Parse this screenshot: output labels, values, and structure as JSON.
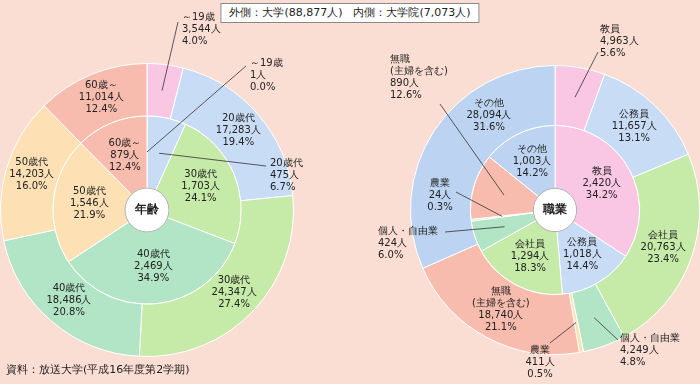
{
  "header": "外側：大学(88,877人)　内側：大学院(7,073人)",
  "source": "資料：放送大学(平成16年度第2学期)",
  "chart_data": [
    {
      "type": "doughnut",
      "title": "年齢",
      "data_labels": true,
      "categories": [
        "～19歳",
        "20歳代",
        "30歳代",
        "40歳代",
        "50歳代",
        "60歳～"
      ],
      "colors": [
        "#f9c6e4",
        "#c9dcf6",
        "#c6eaa8",
        "#b2e4c6",
        "#fde0b4",
        "#f7bcae"
      ],
      "series": [
        {
          "values": [
            3544,
            17283,
            24347,
            18486,
            14203,
            11014
          ],
          "value_labels": [
            "3,544人",
            "17,283人",
            "24,347人",
            "18,486人",
            "14,203人",
            "11,014人"
          ],
          "percents": [
            4.0,
            19.4,
            27.4,
            20.8,
            16.0,
            12.4
          ],
          "percent_labels": [
            "4.0%",
            "19.4%",
            "27.4%",
            "20.8%",
            "16.0%",
            "12.4%"
          ]
        },
        {
          "values": [
            1,
            475,
            1703,
            2469,
            1546,
            879
          ],
          "value_labels": [
            "1人",
            "475人",
            "1,703人",
            "2,469人",
            "1,546人",
            "879人"
          ],
          "percents": [
            0.0,
            6.7,
            24.1,
            34.9,
            21.9,
            12.4
          ],
          "percent_labels": [
            "0.0%",
            "6.7%",
            "24.1%",
            "34.9%",
            "21.9%",
            "12.4%"
          ]
        }
      ]
    },
    {
      "type": "doughnut",
      "title": "職業",
      "data_labels": true,
      "categories": [
        "教員",
        "公務員",
        "会社員",
        "個人・自由業",
        "農業",
        "無職(主婦を含む)",
        "その他"
      ],
      "colors": [
        "#f9c6e4",
        "#c9dcf6",
        "#c6eaa8",
        "#b2e4c6",
        "#fde0b4",
        "#f7bcae",
        "#bcd4f2"
      ],
      "series": [
        {
          "values": [
            4963,
            11657,
            20763,
            4249,
            411,
            18740,
            28094
          ],
          "value_labels": [
            "4,963人",
            "11,657人",
            "20,763人",
            "4,249人",
            "411人",
            "18,740人",
            "28,094人"
          ],
          "percents": [
            5.6,
            13.1,
            23.4,
            4.8,
            0.5,
            21.1,
            31.6
          ],
          "percent_labels": [
            "5.6%",
            "13.1%",
            "23.4%",
            "4.8%",
            "0.5%",
            "21.1%",
            "31.6%"
          ]
        },
        {
          "values": [
            2420,
            1018,
            1294,
            424,
            24,
            890,
            1003
          ],
          "value_labels": [
            "2,420人",
            "1,018人",
            "1,294人",
            "424人",
            "24人",
            "890人",
            "1,003人"
          ],
          "percents": [
            34.2,
            14.4,
            18.3,
            6.0,
            0.3,
            12.6,
            14.2
          ],
          "percent_labels": [
            "34.2%",
            "14.4%",
            "18.3%",
            "6.0%",
            "0.3%",
            "12.6%",
            "14.2%"
          ]
        }
      ]
    }
  ]
}
